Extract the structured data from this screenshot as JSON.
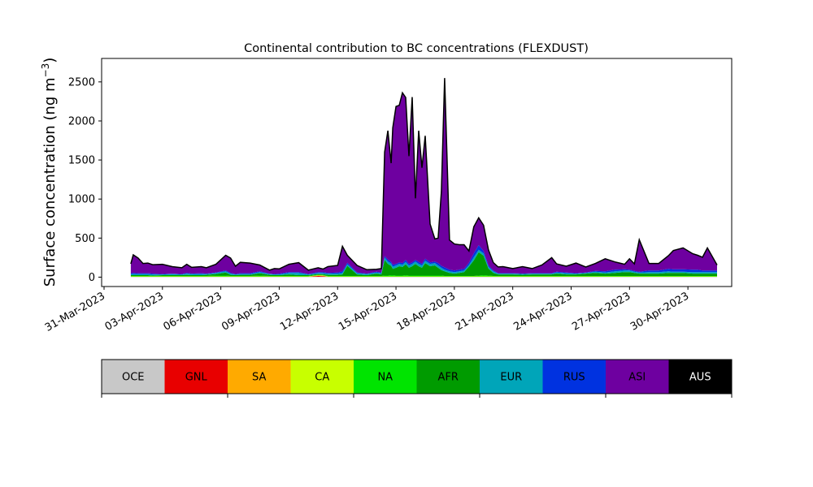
{
  "chart_data": {
    "type": "area",
    "stacked": true,
    "title": "Continental contribution to BC concentrations (FLEXDUST)",
    "ylabel": "Surface concentration (ng m",
    "ylabel_exponent": "−3",
    "ylabel_close": ")",
    "ylim": [
      -120,
      2800
    ],
    "yticks": [
      0,
      500,
      1000,
      1500,
      2000,
      2500
    ],
    "ytick_labels": [
      "0",
      "500",
      "1000",
      "1500",
      "2000",
      "2500"
    ],
    "xlim": [
      "2023-03-30T21:00",
      "2023-05-02T06:00"
    ],
    "xticks": [
      "2023-03-31",
      "2023-04-03",
      "2023-04-06",
      "2023-04-09",
      "2023-04-12",
      "2023-04-15",
      "2023-04-18",
      "2023-04-21",
      "2023-04-24",
      "2023-04-27",
      "2023-04-30"
    ],
    "xtick_labels": [
      "31-Mar-2023",
      "03-Apr-2023",
      "06-Apr-2023",
      "09-Apr-2023",
      "12-Apr-2023",
      "15-Apr-2023",
      "18-Apr-2023",
      "21-Apr-2023",
      "24-Apr-2023",
      "27-Apr-2023",
      "30-Apr-2023"
    ],
    "grid": false,
    "total_outline_color": "#000000",
    "x": [
      "2023-04-01T09:00",
      "2023-04-01T12:00",
      "2023-04-01T18:00",
      "2023-04-02T00:00",
      "2023-04-02T06:00",
      "2023-04-02T12:00",
      "2023-04-03T00:00",
      "2023-04-03T12:00",
      "2023-04-04T00:00",
      "2023-04-04T06:00",
      "2023-04-04T12:00",
      "2023-04-05T00:00",
      "2023-04-05T06:00",
      "2023-04-05T18:00",
      "2023-04-06T06:00",
      "2023-04-06T12:00",
      "2023-04-06T18:00",
      "2023-04-07T00:00",
      "2023-04-07T12:00",
      "2023-04-08T00:00",
      "2023-04-08T12:00",
      "2023-04-08T18:00",
      "2023-04-09T00:00",
      "2023-04-09T12:00",
      "2023-04-10T00:00",
      "2023-04-10T12:00",
      "2023-04-11T00:00",
      "2023-04-11T06:00",
      "2023-04-11T12:00",
      "2023-04-12T00:00",
      "2023-04-12T06:00",
      "2023-04-12T12:00",
      "2023-04-13T00:00",
      "2023-04-13T12:00",
      "2023-04-14T00:00",
      "2023-04-14T06:00",
      "2023-04-14T10:00",
      "2023-04-14T14:00",
      "2023-04-14T18:00",
      "2023-04-14T20:00",
      "2023-04-15T00:00",
      "2023-04-15T04:00",
      "2023-04-15T08:00",
      "2023-04-15T12:00",
      "2023-04-15T16:00",
      "2023-04-15T20:00",
      "2023-04-16T00:00",
      "2023-04-16T04:00",
      "2023-04-16T08:00",
      "2023-04-16T12:00",
      "2023-04-16T18:00",
      "2023-04-17T00:00",
      "2023-04-17T04:00",
      "2023-04-17T08:00",
      "2023-04-17T12:00",
      "2023-04-17T18:00",
      "2023-04-18T00:00",
      "2023-04-18T06:00",
      "2023-04-18T12:00",
      "2023-04-18T18:00",
      "2023-04-19T00:00",
      "2023-04-19T06:00",
      "2023-04-19T12:00",
      "2023-04-19T18:00",
      "2023-04-20T00:00",
      "2023-04-20T06:00",
      "2023-04-20T12:00",
      "2023-04-21T00:00",
      "2023-04-21T12:00",
      "2023-04-22T00:00",
      "2023-04-22T12:00",
      "2023-04-23T00:00",
      "2023-04-23T06:00",
      "2023-04-23T18:00",
      "2023-04-24T06:00",
      "2023-04-24T18:00",
      "2023-04-25T06:00",
      "2023-04-25T18:00",
      "2023-04-26T06:00",
      "2023-04-26T18:00",
      "2023-04-27T00:00",
      "2023-04-27T06:00",
      "2023-04-27T12:00",
      "2023-04-28T00:00",
      "2023-04-28T12:00",
      "2023-04-29T00:00",
      "2023-04-29T06:00",
      "2023-04-29T18:00",
      "2023-04-30T06:00",
      "2023-04-30T12:00",
      "2023-04-30T18:00",
      "2023-05-01T00:00",
      "2023-05-01T12:00"
    ],
    "series": [
      {
        "name": "OCE",
        "color": "#c8c8c8",
        "values": [
          5,
          5,
          5,
          5,
          5,
          5,
          5,
          5,
          5,
          5,
          5,
          5,
          5,
          5,
          5,
          5,
          5,
          5,
          5,
          5,
          5,
          5,
          5,
          5,
          5,
          5,
          5,
          5,
          5,
          5,
          5,
          5,
          5,
          5,
          5,
          5,
          5,
          5,
          5,
          5,
          5,
          5,
          5,
          5,
          5,
          5,
          5,
          5,
          5,
          5,
          5,
          5,
          5,
          5,
          5,
          5,
          5,
          5,
          5,
          5,
          5,
          5,
          5,
          5,
          5,
          5,
          5,
          5,
          5,
          5,
          5,
          5,
          5,
          5,
          5,
          5,
          5,
          5,
          5,
          5,
          5,
          5,
          5,
          5,
          5,
          5,
          5,
          5,
          5,
          5,
          5,
          5,
          5
        ]
      },
      {
        "name": "GNL",
        "color": "#e80000",
        "values": [
          0,
          0,
          0,
          0,
          0,
          0,
          0,
          0,
          0,
          0,
          0,
          0,
          0,
          0,
          0,
          0,
          0,
          0,
          0,
          0,
          0,
          0,
          0,
          0,
          0,
          0,
          10,
          8,
          0,
          0,
          0,
          0,
          0,
          0,
          0,
          0,
          0,
          0,
          0,
          0,
          0,
          0,
          0,
          0,
          0,
          0,
          0,
          0,
          0,
          0,
          0,
          0,
          0,
          0,
          0,
          0,
          0,
          0,
          0,
          0,
          0,
          0,
          0,
          0,
          0,
          0,
          0,
          0,
          0,
          0,
          0,
          0,
          0,
          0,
          0,
          0,
          0,
          0,
          0,
          0,
          0,
          0,
          0,
          0,
          0,
          0,
          0,
          0,
          0,
          0,
          0,
          0,
          0
        ]
      },
      {
        "name": "SA",
        "color": "#ffaa00",
        "values": [
          0,
          0,
          0,
          0,
          0,
          0,
          0,
          0,
          0,
          0,
          0,
          0,
          0,
          0,
          0,
          0,
          0,
          0,
          0,
          0,
          0,
          0,
          0,
          0,
          0,
          0,
          5,
          5,
          0,
          0,
          0,
          0,
          0,
          0,
          0,
          0,
          0,
          0,
          0,
          0,
          0,
          0,
          0,
          0,
          0,
          0,
          0,
          0,
          0,
          0,
          0,
          0,
          0,
          0,
          0,
          0,
          0,
          0,
          0,
          0,
          0,
          0,
          0,
          0,
          0,
          0,
          0,
          0,
          0,
          0,
          0,
          0,
          0,
          0,
          0,
          0,
          0,
          0,
          0,
          0,
          0,
          0,
          0,
          0,
          0,
          0,
          0,
          0,
          0,
          0,
          0,
          0,
          0
        ]
      },
      {
        "name": "CA",
        "color": "#c8ff00",
        "values": [
          5,
          5,
          5,
          5,
          5,
          5,
          5,
          5,
          5,
          5,
          5,
          5,
          5,
          5,
          5,
          5,
          5,
          5,
          5,
          5,
          5,
          5,
          5,
          5,
          5,
          5,
          5,
          5,
          5,
          5,
          5,
          5,
          5,
          5,
          5,
          5,
          5,
          5,
          5,
          5,
          5,
          5,
          5,
          5,
          5,
          5,
          5,
          5,
          5,
          5,
          5,
          5,
          5,
          5,
          5,
          5,
          5,
          5,
          5,
          5,
          5,
          5,
          5,
          5,
          5,
          5,
          5,
          5,
          5,
          5,
          5,
          5,
          5,
          5,
          5,
          5,
          5,
          5,
          5,
          5,
          5,
          5,
          5,
          5,
          5,
          5,
          5,
          5,
          5,
          5,
          5,
          5,
          5
        ]
      },
      {
        "name": "NA",
        "color": "#00e400",
        "values": [
          5,
          5,
          5,
          5,
          5,
          5,
          5,
          5,
          5,
          5,
          5,
          5,
          5,
          10,
          10,
          5,
          5,
          5,
          5,
          10,
          5,
          5,
          5,
          5,
          5,
          5,
          5,
          5,
          5,
          5,
          5,
          5,
          5,
          5,
          5,
          5,
          10,
          10,
          15,
          15,
          10,
          10,
          10,
          15,
          10,
          10,
          10,
          10,
          10,
          10,
          10,
          10,
          10,
          10,
          5,
          5,
          5,
          5,
          5,
          5,
          5,
          10,
          15,
          10,
          5,
          5,
          5,
          5,
          5,
          5,
          5,
          5,
          5,
          5,
          5,
          5,
          5,
          5,
          5,
          5,
          5,
          5,
          5,
          5,
          5,
          5,
          5,
          5,
          5,
          5,
          5,
          5,
          5
        ]
      },
      {
        "name": "AFR",
        "color": "#009b00",
        "values": [
          10,
          10,
          10,
          10,
          10,
          5,
          10,
          10,
          10,
          15,
          10,
          10,
          15,
          20,
          40,
          15,
          10,
          15,
          15,
          30,
          15,
          10,
          10,
          20,
          10,
          10,
          10,
          10,
          15,
          15,
          20,
          130,
          20,
          10,
          30,
          20,
          200,
          150,
          120,
          80,
          100,
          120,
          110,
          140,
          100,
          120,
          150,
          120,
          100,
          160,
          120,
          130,
          100,
          70,
          60,
          40,
          30,
          40,
          50,
          120,
          200,
          300,
          250,
          90,
          40,
          20,
          20,
          20,
          15,
          20,
          20,
          20,
          30,
          20,
          20,
          30,
          40,
          30,
          40,
          50,
          50,
          40,
          30,
          30,
          30,
          40,
          40,
          40,
          30,
          30,
          30,
          30,
          30
        ]
      },
      {
        "name": "EUR",
        "color": "#00a5b9",
        "values": [
          15,
          15,
          15,
          15,
          15,
          15,
          10,
          15,
          10,
          15,
          15,
          15,
          10,
          15,
          15,
          15,
          10,
          10,
          10,
          15,
          10,
          10,
          10,
          20,
          30,
          10,
          15,
          15,
          15,
          15,
          20,
          20,
          15,
          15,
          15,
          15,
          30,
          30,
          30,
          30,
          30,
          30,
          30,
          30,
          30,
          30,
          30,
          30,
          30,
          30,
          30,
          30,
          30,
          30,
          20,
          20,
          20,
          20,
          20,
          20,
          40,
          30,
          30,
          20,
          20,
          10,
          10,
          10,
          10,
          10,
          10,
          10,
          15,
          15,
          10,
          10,
          15,
          15,
          20,
          20,
          20,
          15,
          15,
          20,
          20,
          20,
          15,
          15,
          20,
          20,
          20,
          20,
          20
        ]
      },
      {
        "name": "RUS",
        "color": "#0032e0",
        "values": [
          10,
          15,
          10,
          10,
          10,
          10,
          5,
          5,
          5,
          10,
          5,
          10,
          5,
          5,
          10,
          10,
          5,
          10,
          10,
          10,
          5,
          5,
          10,
          10,
          10,
          5,
          10,
          10,
          10,
          15,
          20,
          20,
          10,
          5,
          10,
          10,
          20,
          25,
          20,
          25,
          20,
          20,
          20,
          25,
          20,
          20,
          20,
          25,
          20,
          25,
          20,
          20,
          30,
          25,
          30,
          20,
          20,
          20,
          20,
          30,
          50,
          60,
          30,
          20,
          10,
          5,
          5,
          5,
          5,
          5,
          5,
          5,
          10,
          10,
          5,
          5,
          10,
          15,
          20,
          15,
          10,
          10,
          10,
          20,
          20,
          30,
          30,
          30,
          30,
          30,
          20,
          20,
          20
        ]
      },
      {
        "name": "ASI",
        "color": "#6e00a0",
        "values": [
          120,
          230,
          195,
          125,
          130,
          115,
          125,
          90,
          80,
          110,
          80,
          85,
          75,
          105,
          195,
          190,
          100,
          140,
          130,
          80,
          45,
          70,
          60,
          100,
          120,
          50,
          55,
          40,
          80,
          90,
          320,
          95,
          90,
          50,
          30,
          50,
          1330,
          1650,
          1265,
          1750,
          2015,
          2010,
          2180,
          2080,
          1380,
          2115,
          790,
          1680,
          1230,
          1575,
          490,
          290,
          320,
          950,
          2425,
          380,
          340,
          320,
          310,
          150,
          340,
          350,
          330,
          200,
          100,
          80,
          85,
          60,
          90,
          60,
          105,
          200,
          100,
          80,
          130,
          70,
          95,
          160,
          100,
          65,
          140,
          90,
          410,
          90,
          90,
          170,
          240,
          275,
          205,
          185,
          170,
          290,
          70
        ]
      },
      {
        "name": "AUS",
        "color": "#000000",
        "values": [
          0,
          0,
          0,
          0,
          0,
          0,
          0,
          0,
          0,
          0,
          0,
          0,
          0,
          0,
          0,
          0,
          0,
          0,
          0,
          0,
          0,
          0,
          0,
          0,
          0,
          0,
          0,
          0,
          0,
          0,
          0,
          0,
          0,
          0,
          0,
          0,
          0,
          0,
          0,
          0,
          0,
          0,
          0,
          0,
          0,
          0,
          0,
          0,
          0,
          0,
          0,
          0,
          0,
          0,
          0,
          0,
          0,
          0,
          0,
          0,
          0,
          0,
          0,
          0,
          0,
          0,
          0,
          0,
          0,
          0,
          0,
          0,
          0,
          0,
          0,
          0,
          0,
          0,
          0,
          0,
          0,
          0,
          0,
          0,
          0,
          0,
          0,
          0,
          0,
          0,
          0,
          0,
          0
        ]
      }
    ],
    "legend": {
      "placement": "colorbar-below",
      "entries": [
        {
          "label": "OCE",
          "color": "#c8c8c8"
        },
        {
          "label": "GNL",
          "color": "#e80000"
        },
        {
          "label": "SA",
          "color": "#ffaa00"
        },
        {
          "label": "CA",
          "color": "#c8ff00"
        },
        {
          "label": "NA",
          "color": "#00e400"
        },
        {
          "label": "AFR",
          "color": "#009b00"
        },
        {
          "label": "EUR",
          "color": "#00a5b9"
        },
        {
          "label": "RUS",
          "color": "#0032e0"
        },
        {
          "label": "ASI",
          "color": "#6e00a0"
        },
        {
          "label": "AUS",
          "color": "#000000"
        }
      ]
    }
  }
}
